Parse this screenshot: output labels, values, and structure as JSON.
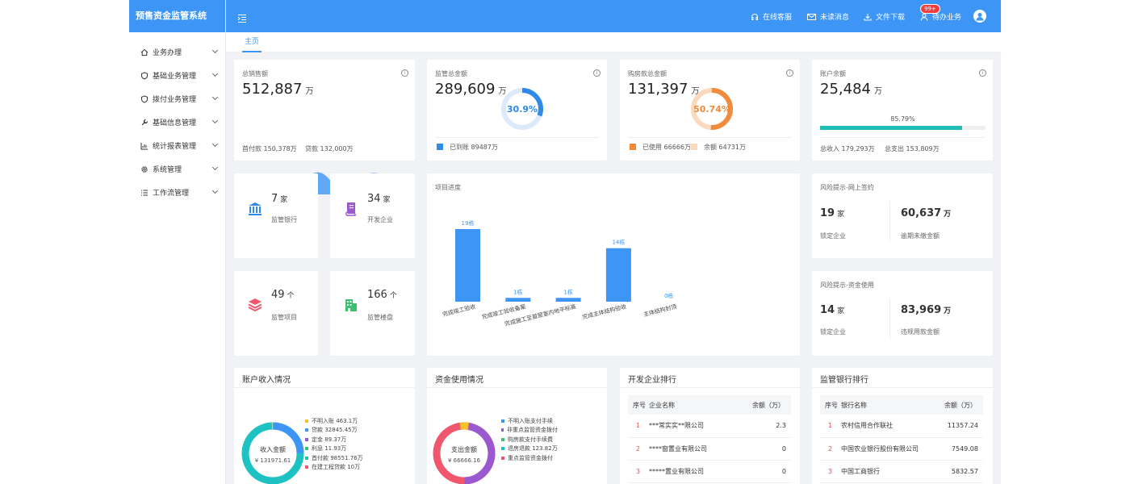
{
  "app": {
    "title": "预售资金监管系统"
  },
  "sidebar": {
    "items": [
      {
        "label": "业务办理",
        "icon": "home-icon"
      },
      {
        "label": "基础业务管理",
        "icon": "shield-icon"
      },
      {
        "label": "拨付业务管理",
        "icon": "shield-icon"
      },
      {
        "label": "基础信息管理",
        "icon": "wrench-icon"
      },
      {
        "label": "统计报表管理",
        "icon": "chart-icon"
      },
      {
        "label": "系统管理",
        "icon": "gear-icon"
      },
      {
        "label": "工作流管理",
        "icon": "list-icon"
      }
    ]
  },
  "header": {
    "service": "在线客服",
    "messages": "未读消息",
    "download": "文件下载",
    "todo": "待办业务",
    "badge": "99+"
  },
  "tabs": {
    "home": "主页"
  },
  "stats": {
    "sales": {
      "title": "总销售额",
      "value": "512,887",
      "unit": "万",
      "down": "首付款 150,378万",
      "loan": "贷款 132,000万"
    },
    "supervise": {
      "title": "监管总金额",
      "value": "289,609",
      "unit": "万",
      "percent": "30.9%",
      "percent_val": 30.9,
      "legend": "已到账 89487万"
    },
    "purchase": {
      "title": "购房款总金额",
      "value": "131,397",
      "unit": "万",
      "percent": "50.74%",
      "percent_val": 50.74,
      "used": "已使用 66666万",
      "remain": "余额 64731万"
    },
    "balance": {
      "title": "账户余额",
      "value": "25,484",
      "unit": "万",
      "progress_label": "85.79%",
      "progress": 85.79,
      "income": "总收入 179,293万",
      "expense": "总支出 153,809万"
    }
  },
  "tiles": [
    {
      "num": "7",
      "unit": "家",
      "label": "监管银行",
      "icon": "bank-icon",
      "color": "#2f89e8"
    },
    {
      "num": "34",
      "unit": "家",
      "label": "开发企业",
      "icon": "book-icon",
      "color": "#9b59d0"
    },
    {
      "num": "49",
      "unit": "个",
      "label": "监管项目",
      "icon": "layers-icon",
      "color": "#f0566c"
    },
    {
      "num": "166",
      "unit": "个",
      "label": "监管楼盘",
      "icon": "building-icon",
      "color": "#3fbf70"
    }
  ],
  "progress_chart": {
    "title": "项目进度"
  },
  "chart_data": {
    "type": "bar",
    "title": "项目进度",
    "categories": [
      "完成竣工验收",
      "完成竣工验收备案",
      "完成施工至首层室内地平标高",
      "完成主体结构验收",
      "主体结构封顶"
    ],
    "values": [
      19,
      1,
      1,
      14,
      0
    ],
    "value_labels": [
      "19栋",
      "1栋",
      "1栋",
      "14栋",
      "0栋"
    ],
    "ylim": [
      0,
      19
    ]
  },
  "risk_sign": {
    "title": "风险提示-网上签约",
    "num1": "19",
    "unit1": "家",
    "label1": "锁定企业",
    "num2": "60,637",
    "unit2": "万",
    "label2": "逾期未缴金额"
  },
  "risk_fund": {
    "title": "风险提示-资金使用",
    "num1": "14",
    "unit1": "家",
    "label1": "锁定企业",
    "num2": "83,969",
    "unit2": "万",
    "label2": "违规用款金额"
  },
  "income": {
    "title": "账户收入情况",
    "center_label": "收入金额",
    "center_value": "¥ 131971.61",
    "legend": [
      {
        "label": "不明入账 463.1万",
        "color": "#f5c22b"
      },
      {
        "label": "贷款 32845.45万",
        "color": "#3d96f5"
      },
      {
        "label": "定金 89.37万",
        "color": "#9b59d0"
      },
      {
        "label": "利息 11.93万",
        "color": "#3fbf70"
      },
      {
        "label": "首付款 98551.76万",
        "color": "#1fc2c2"
      },
      {
        "label": "在建工程贷款 10万",
        "color": "#f0566c"
      }
    ]
  },
  "usage": {
    "title": "资金使用情况",
    "center_label": "支出金额",
    "center_value": "¥ 66666.16",
    "legend": [
      {
        "label": "不明入账支付手续",
        "color": "#3d96f5"
      },
      {
        "label": "非重点监管资金拨付",
        "color": "#9b59d0"
      },
      {
        "label": "购房款支付手续费",
        "color": "#3fbf70"
      },
      {
        "label": "退房退款 123.82万",
        "color": "#1fc2c2"
      },
      {
        "label": "重点监管资金拨付",
        "color": "#f0566c"
      }
    ]
  },
  "dev_rank": {
    "title": "开发企业排行",
    "headers": [
      "序号",
      "企业名称",
      "余额（万）"
    ],
    "rows": [
      [
        "1",
        "***常实实**限公司",
        "2.3"
      ],
      [
        "2",
        "****窗置业有限公司",
        "0"
      ],
      [
        "3",
        "*****置业有限公司",
        "0"
      ]
    ]
  },
  "bank_rank": {
    "title": "监管银行排行",
    "headers": [
      "序号",
      "银行名称",
      "余额（万）"
    ],
    "rows": [
      [
        "1",
        "农村信用合作联社",
        "11357.24"
      ],
      [
        "2",
        "中国农业银行股份有限公司",
        "7549.08"
      ],
      [
        "3",
        "中国工商银行",
        "5832.57"
      ]
    ]
  }
}
